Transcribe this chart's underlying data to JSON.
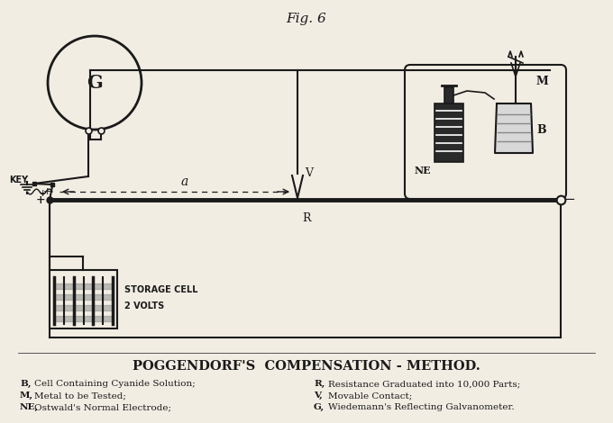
{
  "title": "Fig. 6",
  "main_title": "POGGENDORF'S  COMPENSATION - METHOD.",
  "legend_items": [
    [
      "B,",
      "Cell Containing Cyanide Solution;",
      "R,",
      "Resistance Graduated into 10,000 Parts;"
    ],
    [
      "M,",
      "Metal to be Tested;",
      "V,",
      "Movable Contact;"
    ],
    [
      "NE,",
      "Ostwald's Normal Electrode;",
      "G,",
      "Wiedemann's Reflecting Galvanometer."
    ]
  ],
  "bg_color": "#f2ede3",
  "line_color": "#1a1a1a",
  "fig_width": 6.8,
  "fig_height": 4.7
}
